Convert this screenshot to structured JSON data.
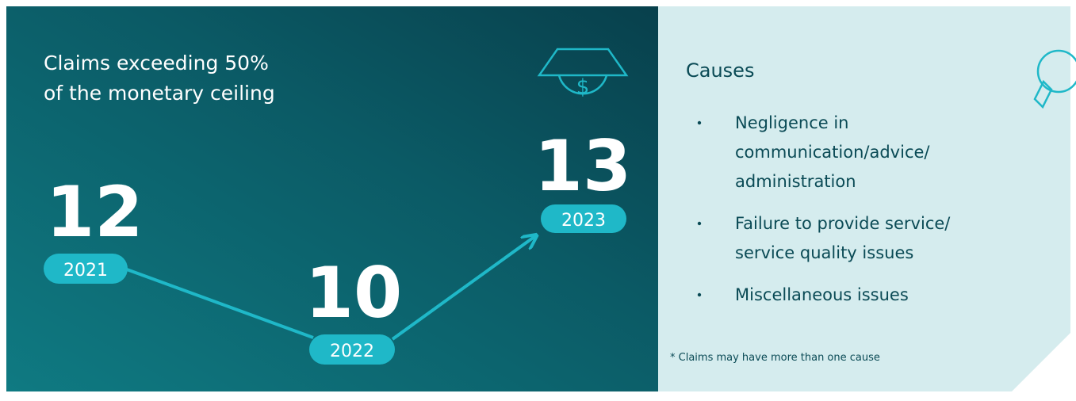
{
  "left": {
    "title": [
      "Claims exceeding 50%",
      "of the monetary ceiling"
    ],
    "items": [
      {
        "value": "12",
        "year": "2021"
      },
      {
        "value": "10",
        "year": "2022"
      },
      {
        "value": "13",
        "year": "2023"
      }
    ]
  },
  "right": {
    "title": "Causes",
    "causes": [
      [
        "Negligence in",
        "communication/advice/",
        "administration"
      ],
      [
        "Failure to provide service/",
        "service quality issues"
      ],
      [
        "Miscellaneous issues"
      ]
    ],
    "footnote": "* Claims may have more than one cause"
  }
}
